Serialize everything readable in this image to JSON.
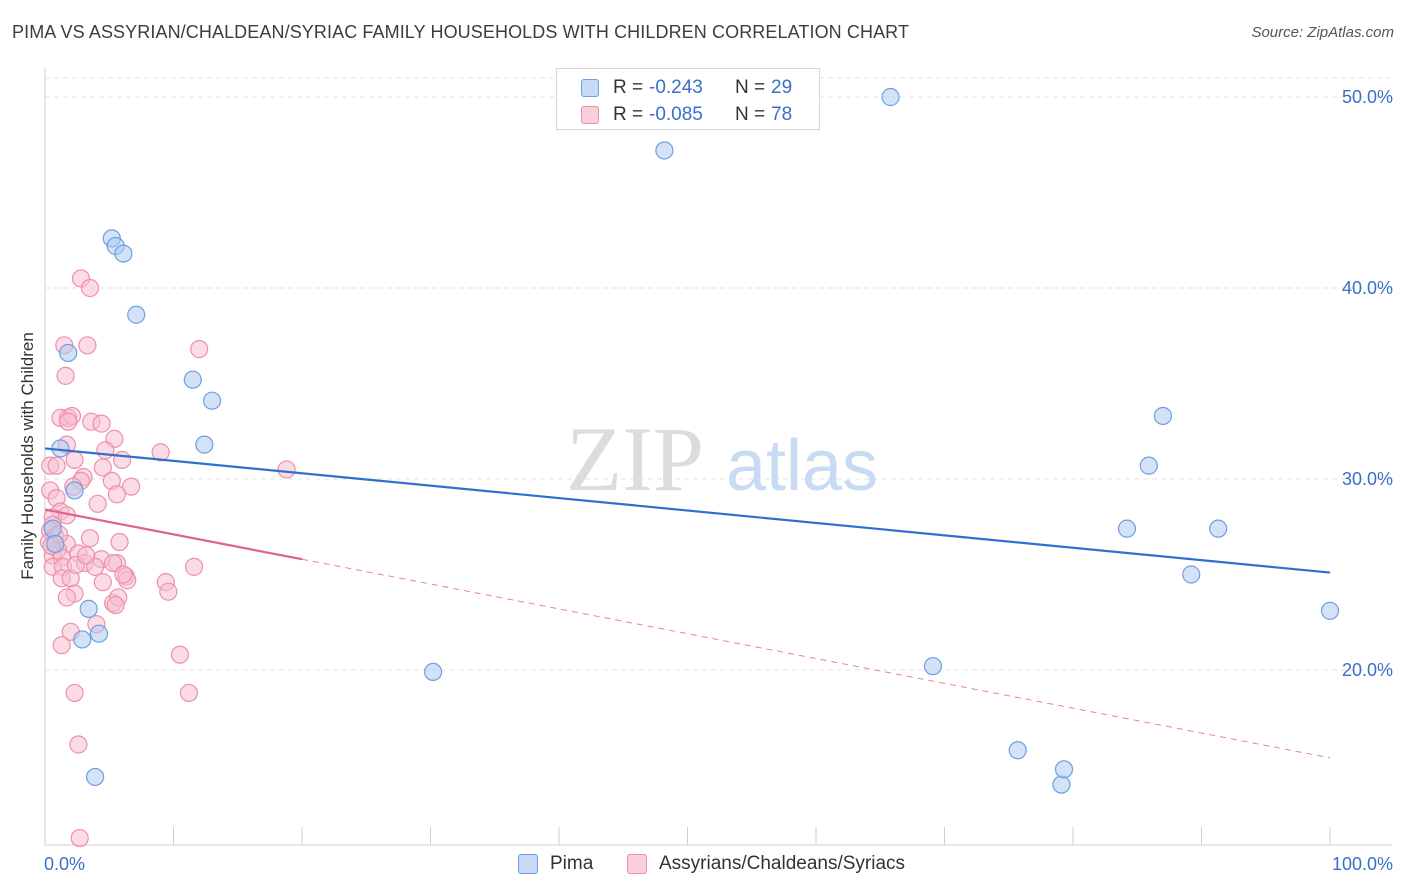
{
  "header": {
    "title": "PIMA VS ASSYRIAN/CHALDEAN/SYRIAC FAMILY HOUSEHOLDS WITH CHILDREN CORRELATION CHART",
    "source": "Source: ZipAtlas.com"
  },
  "legend": {
    "rows": [
      {
        "r_label": "R =",
        "r_value": "-0.243",
        "n_label": "N =",
        "n_value": "29"
      },
      {
        "r_label": "R =",
        "r_value": "-0.085",
        "n_label": "N =",
        "n_value": "78"
      }
    ]
  },
  "bottom_legend": [
    "Pima",
    "Assyrians/Chaldeans/Syriacs"
  ],
  "colors": {
    "pima_fill": "#aecbf0",
    "pima_stroke": "#6d9fe0",
    "pima_line": "#2f6fd0",
    "assyr_fill": "#f7bfd0",
    "assyr_stroke": "#ee8fae",
    "assyr_line": "#e0628c",
    "grid": "#e3e3e3",
    "axis_text": "#3a6fc8",
    "watermark": "#dddddd",
    "watermark_atlas": "#c6d9f1"
  },
  "watermark": {
    "zip": "ZIP",
    "atlas": "atlas"
  },
  "chart_data": {
    "type": "scatter",
    "title": "PIMA VS ASSYRIAN/CHALDEAN/SYRIAC FAMILY HOUSEHOLDS WITH CHILDREN CORRELATION CHART",
    "xlabel": "",
    "ylabel": "Family Households with Children",
    "xlim": [
      0,
      100
    ],
    "ylim": [
      10.5,
      52.0
    ],
    "x_tick_labels": [
      "0.0%",
      "100.0%"
    ],
    "y_ticks": [
      20,
      30,
      40,
      50
    ],
    "y_tick_labels": [
      "20.0%",
      "30.0%",
      "40.0%",
      "50.0%"
    ],
    "legend_position": "top-center",
    "series": [
      {
        "name": "Pima",
        "r": -0.243,
        "n": 29,
        "trend": {
          "x0": 0,
          "y0": 31.6,
          "x1": 100,
          "y1": 25.1,
          "solid_until": 100
        },
        "points": [
          [
            5.2,
            42.6
          ],
          [
            5.5,
            42.2
          ],
          [
            6.1,
            41.8
          ],
          [
            7.1,
            38.6
          ],
          [
            1.8,
            36.6
          ],
          [
            11.5,
            35.2
          ],
          [
            13.0,
            34.1
          ],
          [
            12.4,
            31.8
          ],
          [
            1.2,
            31.6
          ],
          [
            2.3,
            29.4
          ],
          [
            0.6,
            27.4
          ],
          [
            0.8,
            26.6
          ],
          [
            3.4,
            23.2
          ],
          [
            4.2,
            21.9
          ],
          [
            2.9,
            21.6
          ],
          [
            3.9,
            14.4
          ],
          [
            30.2,
            19.9
          ],
          [
            48.2,
            47.2
          ],
          [
            65.8,
            50.0
          ],
          [
            69.1,
            20.2
          ],
          [
            75.7,
            15.8
          ],
          [
            79.1,
            14.0
          ],
          [
            79.3,
            14.8
          ],
          [
            84.2,
            27.4
          ],
          [
            85.9,
            30.7
          ],
          [
            87.0,
            33.3
          ],
          [
            89.2,
            25.0
          ],
          [
            91.3,
            27.4
          ],
          [
            100.0,
            23.1
          ]
        ]
      },
      {
        "name": "Assyrians/Chaldeans/Syriacs",
        "r": -0.085,
        "n": 78,
        "trend": {
          "x0": 0,
          "y0": 28.4,
          "x1": 100,
          "y1": 15.4,
          "solid_until": 20
        },
        "points": [
          [
            2.8,
            40.5
          ],
          [
            3.5,
            40.0
          ],
          [
            1.5,
            37.0
          ],
          [
            3.3,
            37.0
          ],
          [
            12.0,
            36.8
          ],
          [
            1.6,
            35.4
          ],
          [
            1.2,
            33.2
          ],
          [
            1.8,
            33.2
          ],
          [
            2.1,
            33.3
          ],
          [
            3.6,
            33.0
          ],
          [
            4.4,
            32.9
          ],
          [
            1.8,
            33.0
          ],
          [
            5.4,
            32.1
          ],
          [
            1.7,
            31.8
          ],
          [
            4.7,
            31.5
          ],
          [
            9.0,
            31.4
          ],
          [
            6.0,
            31.0
          ],
          [
            2.3,
            31.0
          ],
          [
            0.4,
            30.7
          ],
          [
            0.9,
            30.7
          ],
          [
            4.5,
            30.6
          ],
          [
            18.8,
            30.5
          ],
          [
            3.0,
            30.1
          ],
          [
            2.8,
            29.9
          ],
          [
            5.2,
            29.9
          ],
          [
            2.2,
            29.6
          ],
          [
            6.7,
            29.6
          ],
          [
            0.4,
            29.4
          ],
          [
            5.6,
            29.2
          ],
          [
            0.9,
            29.0
          ],
          [
            4.1,
            28.7
          ],
          [
            1.2,
            28.3
          ],
          [
            0.6,
            28.0
          ],
          [
            1.7,
            28.1
          ],
          [
            0.6,
            27.6
          ],
          [
            0.4,
            27.3
          ],
          [
            0.8,
            27.0
          ],
          [
            3.5,
            26.9
          ],
          [
            0.3,
            26.7
          ],
          [
            5.8,
            26.7
          ],
          [
            1.7,
            26.6
          ],
          [
            1.0,
            26.3
          ],
          [
            2.6,
            26.1
          ],
          [
            0.6,
            26.0
          ],
          [
            1.3,
            25.9
          ],
          [
            4.4,
            25.8
          ],
          [
            3.1,
            25.6
          ],
          [
            5.6,
            25.6
          ],
          [
            0.6,
            25.4
          ],
          [
            1.4,
            25.4
          ],
          [
            3.9,
            25.4
          ],
          [
            5.3,
            25.6
          ],
          [
            11.6,
            25.4
          ],
          [
            1.3,
            24.8
          ],
          [
            2.0,
            24.8
          ],
          [
            6.3,
            24.9
          ],
          [
            4.5,
            24.6
          ],
          [
            6.4,
            24.7
          ],
          [
            9.4,
            24.6
          ],
          [
            2.3,
            24.0
          ],
          [
            1.7,
            23.8
          ],
          [
            5.3,
            23.5
          ],
          [
            5.7,
            23.8
          ],
          [
            9.6,
            24.1
          ],
          [
            4.0,
            22.4
          ],
          [
            2.0,
            22.0
          ],
          [
            1.3,
            21.3
          ],
          [
            10.5,
            20.8
          ],
          [
            2.3,
            18.8
          ],
          [
            11.2,
            18.8
          ],
          [
            2.6,
            16.1
          ],
          [
            2.7,
            11.2
          ],
          [
            5.5,
            23.4
          ],
          [
            0.5,
            26.5
          ],
          [
            1.1,
            27.1
          ],
          [
            2.4,
            25.5
          ],
          [
            3.2,
            26.0
          ],
          [
            6.1,
            25.0
          ]
        ]
      }
    ]
  }
}
